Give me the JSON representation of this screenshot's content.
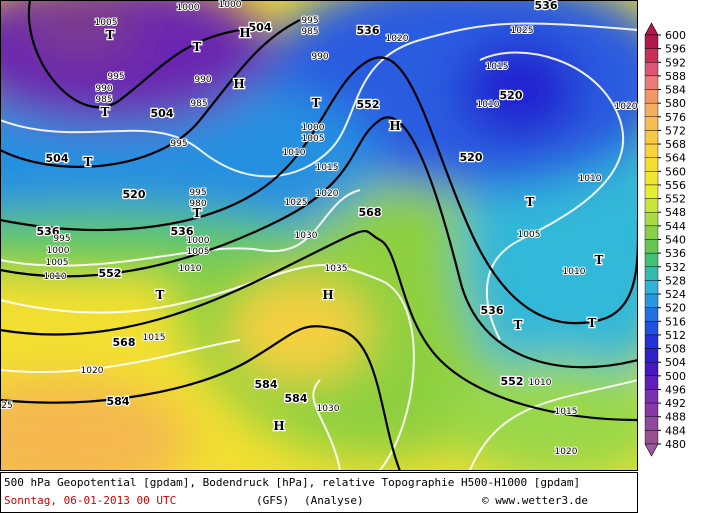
{
  "map": {
    "height_labels": [
      "504",
      "536",
      "536",
      "504",
      "504",
      "552",
      "520",
      "520",
      "520",
      "536",
      "536",
      "568",
      "552",
      "568",
      "536",
      "552",
      "584",
      "584",
      "584"
    ],
    "pressure_labels": [
      "1000",
      "1000",
      "1005",
      "995",
      "990",
      "985",
      "990",
      "985",
      "995",
      "995",
      "985",
      "990",
      "1020",
      "1025",
      "1015",
      "1010",
      "1020",
      "1010",
      "1000",
      "1005",
      "1015",
      "1020",
      "1025",
      "995",
      "980",
      "1000",
      "1005",
      "1000",
      "995",
      "1005",
      "1010",
      "1010",
      "1030",
      "1035",
      "1010",
      "1005",
      "1010",
      "1015",
      "1020",
      "1030",
      "1010",
      "1015",
      "1020",
      "25"
    ],
    "markers": [
      "T",
      "T",
      "T",
      "T",
      "T",
      "T",
      "T",
      "T",
      "T",
      "T",
      "T",
      "H",
      "H",
      "H",
      "H",
      "H"
    ]
  },
  "colorbar": {
    "levels": [
      600,
      596,
      592,
      588,
      584,
      580,
      576,
      572,
      568,
      564,
      560,
      556,
      552,
      548,
      544,
      540,
      536,
      532,
      528,
      524,
      520,
      516,
      512,
      508,
      504,
      500,
      496,
      492,
      488,
      484,
      480
    ],
    "colors": [
      "#b0174c",
      "#c83058",
      "#dc5572",
      "#ec7c7c",
      "#f29868",
      "#f5ad5e",
      "#f6bd52",
      "#f6c846",
      "#f7d23a",
      "#f5dc30",
      "#f2e62e",
      "#e4ee32",
      "#c6e63a",
      "#a8dc40",
      "#88d048",
      "#64c852",
      "#42c07a",
      "#30bcac",
      "#30b4d8",
      "#2898e0",
      "#2070e0",
      "#2050e0",
      "#2232d8",
      "#3020c8",
      "#4818c0",
      "#6020b8",
      "#7a30b0",
      "#8838a8",
      "#9048a0",
      "#985090",
      "#9c5aa0"
    ]
  },
  "footer": {
    "line1": "500 hPa Geopotential [gpdam], Bodendruck [hPa], relative Topographie H500-H1000 [gpdam]",
    "date": "Sonntag, 06-01-2013  00 UTC",
    "model": "(GFS)",
    "run": "(Analyse)",
    "credit": "© www.wetter3.de"
  }
}
